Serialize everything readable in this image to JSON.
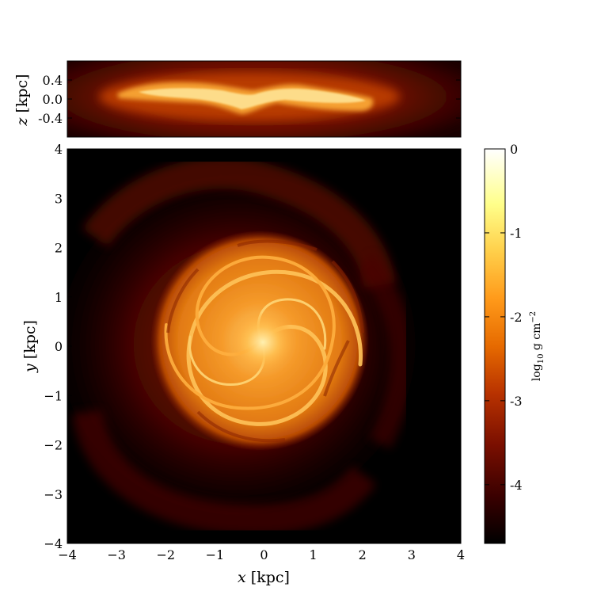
{
  "panels": [
    {
      "id": "edge_on",
      "x_range": [
        -4,
        4
      ],
      "y_label_var": "z",
      "y_label_unit": "[kpc]",
      "y_ticks": [
        "0.4",
        "0.0",
        "-0.4"
      ],
      "y_tick_values": [
        0.4,
        0.0,
        -0.4
      ],
      "y_range": [
        -0.8,
        0.8
      ]
    },
    {
      "id": "face_on",
      "x_label_var": "x",
      "x_label_unit": "[kpc]",
      "y_label_var": "y",
      "y_label_unit": "[kpc]",
      "x_ticks": [
        "−4",
        "−3",
        "−2",
        "−1",
        "0",
        "1",
        "2",
        "3",
        "4"
      ],
      "x_tick_values": [
        -4,
        -3,
        -2,
        -1,
        0,
        1,
        2,
        3,
        4
      ],
      "y_ticks": [
        "4",
        "3",
        "2",
        "1",
        "0",
        "−1",
        "−2",
        "−3",
        "−4"
      ],
      "y_tick_values": [
        4,
        3,
        2,
        1,
        0,
        -1,
        -2,
        -3,
        -4
      ],
      "range": [
        -4,
        4
      ]
    }
  ],
  "colorbar": {
    "ticks": [
      "0",
      "-1",
      "-2",
      "-3",
      "-4"
    ],
    "tick_values": [
      0,
      -1,
      -2,
      -3,
      -4
    ],
    "range": [
      -4.7,
      0
    ],
    "label_log": "log",
    "label_sub": "10",
    "label_unit": "g cm",
    "label_exp": "−2",
    "colormap": [
      "#000000",
      "#3a0000",
      "#7a0f00",
      "#b83200",
      "#e66a00",
      "#ff9a1a",
      "#ffcf4a",
      "#ffff8a",
      "#ffffff"
    ]
  }
}
